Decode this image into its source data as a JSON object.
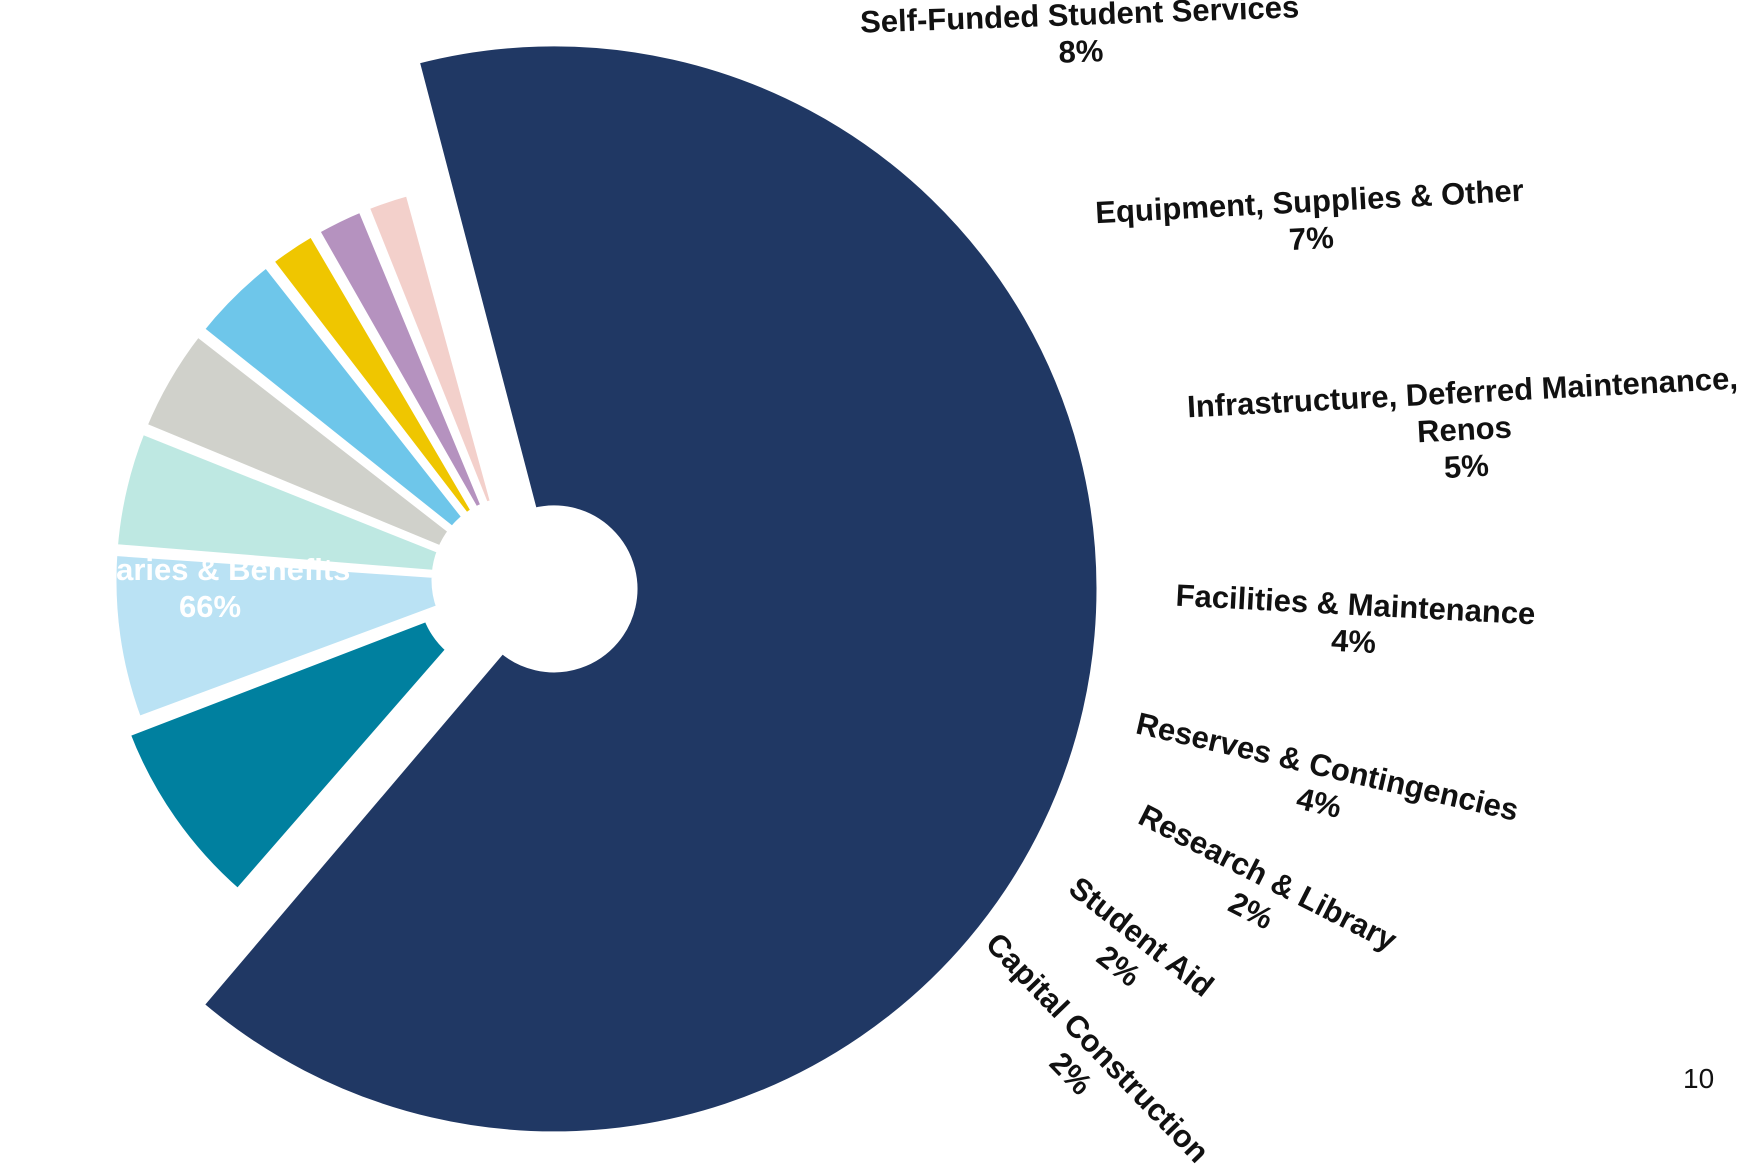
{
  "page_number": "10",
  "chart_data": {
    "type": "pie",
    "title": "",
    "slices": [
      {
        "label": "Salaries & Benefits",
        "lines": [
          "Salaries & Benefits"
        ],
        "percent_label": "66%",
        "value": 66,
        "color": "#203864",
        "exploded": true,
        "label_inside": true
      },
      {
        "label": "Self-Funded Student Services",
        "lines": [
          "Self-Funded Student Services"
        ],
        "percent_label": "8%",
        "value": 8,
        "color": "#00809F",
        "exploded": true
      },
      {
        "label": "Equipment, Supplies & Other",
        "lines": [
          "Equipment, Supplies & Other"
        ],
        "percent_label": "7%",
        "value": 7,
        "color": "#BAE2F4"
      },
      {
        "label": "Infrastructure, Deferred Maintenance, Renos",
        "lines": [
          "Infrastructure, Deferred Maintenance,",
          "Renos"
        ],
        "percent_label": "5%",
        "value": 5,
        "color": "#BEE8E2"
      },
      {
        "label": "Facilities & Maintenance",
        "lines": [
          "Facilities & Maintenance"
        ],
        "percent_label": "4%",
        "value": 4.5,
        "color": "#D0D1CB"
      },
      {
        "label": "Reserves & Contingencies",
        "lines": [
          "Reserves & Contingencies"
        ],
        "percent_label": "4%",
        "value": 3.9,
        "color": "#6EC6EA"
      },
      {
        "label": "Research & Library",
        "lines": [
          "Research & Library"
        ],
        "percent_label": "2%",
        "value": 2.2,
        "color": "#EFC600"
      },
      {
        "label": "Student Aid",
        "lines": [
          "Student Aid"
        ],
        "percent_label": "2%",
        "value": 2.2,
        "color": "#B592BF"
      },
      {
        "label": "Capital Construction",
        "lines": [
          "Capital Construction"
        ],
        "percent_label": "2%",
        "value": 2.0,
        "color": "#F3D0CB"
      }
    ]
  }
}
